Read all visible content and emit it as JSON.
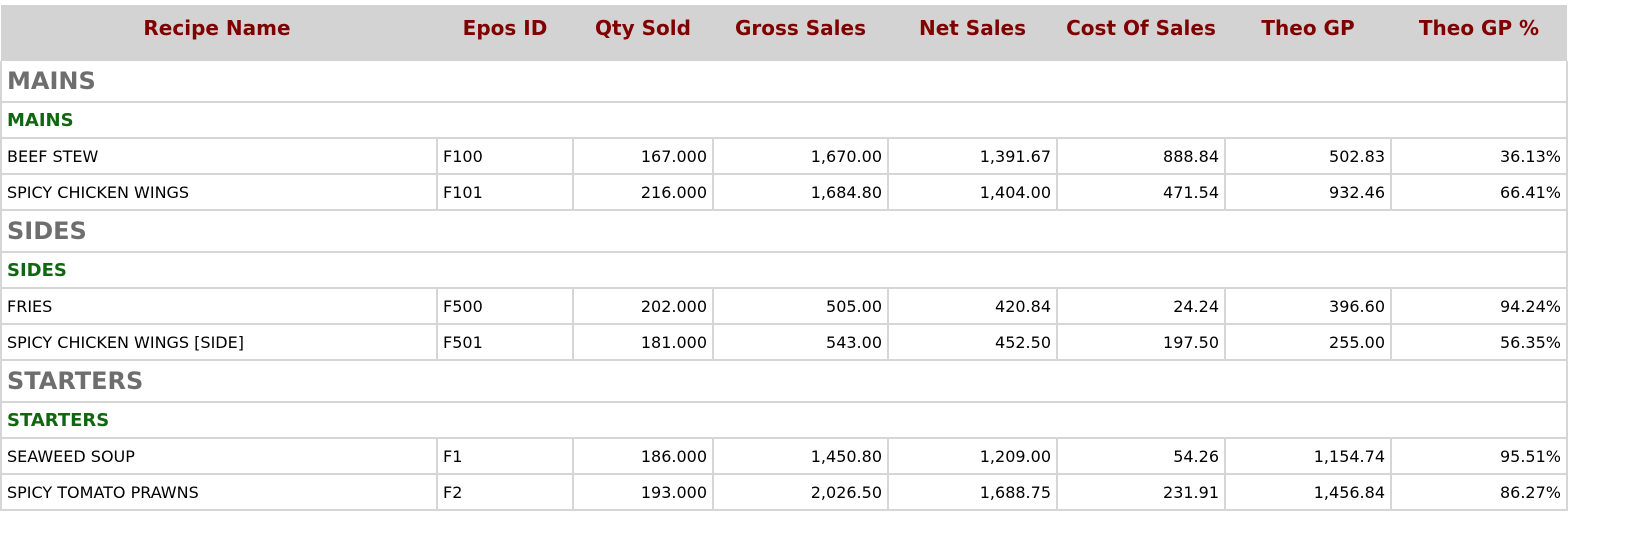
{
  "columns": {
    "recipe_name": "Recipe Name",
    "epos_id": "Epos ID",
    "qty_sold": "Qty Sold",
    "gross_sales": "Gross Sales",
    "net_sales": "Net Sales",
    "cost_of_sales": "Cost Of Sales",
    "theo_gp": "Theo GP",
    "theo_gp_pct": "Theo GP %"
  },
  "groups": [
    {
      "category": "MAINS",
      "subcategory": "MAINS",
      "rows": [
        {
          "name": "BEEF STEW",
          "epos": "F100",
          "qty": "167.000",
          "gross": "1,670.00",
          "net": "1,391.67",
          "cost": "888.84",
          "gp": "502.83",
          "gp_pct": "36.13%"
        },
        {
          "name": "SPICY CHICKEN WINGS",
          "epos": "F101",
          "qty": "216.000",
          "gross": "1,684.80",
          "net": "1,404.00",
          "cost": "471.54",
          "gp": "932.46",
          "gp_pct": "66.41%"
        }
      ]
    },
    {
      "category": "SIDES",
      "subcategory": "SIDES",
      "rows": [
        {
          "name": "FRIES",
          "epos": "F500",
          "qty": "202.000",
          "gross": "505.00",
          "net": "420.84",
          "cost": "24.24",
          "gp": "396.60",
          "gp_pct": "94.24%"
        },
        {
          "name": "SPICY CHICKEN WINGS [SIDE]",
          "epos": "F501",
          "qty": "181.000",
          "gross": "543.00",
          "net": "452.50",
          "cost": "197.50",
          "gp": "255.00",
          "gp_pct": "56.35%"
        }
      ]
    },
    {
      "category": "STARTERS",
      "subcategory": "STARTERS",
      "rows": [
        {
          "name": "SEAWEED SOUP",
          "epos": "F1",
          "qty": "186.000",
          "gross": "1,450.80",
          "net": "1,209.00",
          "cost": "54.26",
          "gp": "1,154.74",
          "gp_pct": "95.51%"
        },
        {
          "name": "SPICY TOMATO PRAWNS",
          "epos": "F2",
          "qty": "193.000",
          "gross": "2,026.50",
          "net": "1,688.75",
          "cost": "231.91",
          "gp": "1,456.84",
          "gp_pct": "86.27%"
        }
      ]
    }
  ]
}
